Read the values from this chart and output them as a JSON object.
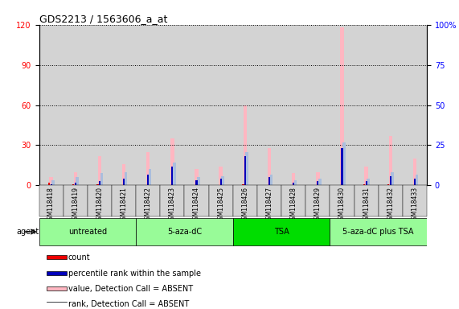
{
  "title": "GDS2213 / 1563606_a_at",
  "samples": [
    "GSM118418",
    "GSM118419",
    "GSM118420",
    "GSM118421",
    "GSM118422",
    "GSM118423",
    "GSM118424",
    "GSM118425",
    "GSM118426",
    "GSM118427",
    "GSM118428",
    "GSM118429",
    "GSM118430",
    "GSM118431",
    "GSM118432",
    "GSM118433"
  ],
  "value_absent": [
    6,
    10,
    22,
    16,
    25,
    35,
    12,
    14,
    60,
    28,
    9,
    10,
    118,
    14,
    37,
    20
  ],
  "rank_absent": [
    4,
    6,
    9,
    10,
    12,
    17,
    6,
    7,
    25,
    8,
    4,
    5,
    32,
    5,
    10,
    8
  ],
  "count": [
    2,
    1,
    1,
    0,
    0,
    0,
    0,
    0,
    1,
    0,
    0,
    0,
    0,
    1,
    1,
    0
  ],
  "percentile_rank": [
    1,
    2,
    3,
    5,
    8,
    14,
    4,
    5,
    22,
    6,
    2,
    3,
    28,
    3,
    7,
    5
  ],
  "groups": [
    {
      "label": "untreated",
      "start": 0,
      "end": 4,
      "color": "#98FB98"
    },
    {
      "label": "5-aza-dC",
      "start": 4,
      "end": 8,
      "color": "#98FB98"
    },
    {
      "label": "TSA",
      "start": 8,
      "end": 12,
      "color": "#00DD00"
    },
    {
      "label": "5-aza-dC plus TSA",
      "start": 12,
      "end": 16,
      "color": "#98FB98"
    }
  ],
  "ylim_left": [
    0,
    120
  ],
  "ylim_right": [
    0,
    100
  ],
  "yticks_left": [
    0,
    30,
    60,
    90,
    120
  ],
  "yticks_right": [
    0,
    25,
    50,
    75,
    100
  ],
  "ytick_labels_right": [
    "0",
    "25",
    "50",
    "75",
    "100%"
  ],
  "color_value_absent": "#FFB6C1",
  "color_rank_absent": "#AABEDD",
  "color_count": "#EE0000",
  "color_percentile": "#0000BB",
  "bar_bg_color": "#D3D3D3",
  "plot_bg_color": "#FFFFFF",
  "legend_items": [
    {
      "label": "count",
      "color": "#EE0000"
    },
    {
      "label": "percentile rank within the sample",
      "color": "#0000BB"
    },
    {
      "label": "value, Detection Call = ABSENT",
      "color": "#FFB6C1"
    },
    {
      "label": "rank, Detection Call = ABSENT",
      "color": "#AABEDD"
    }
  ]
}
